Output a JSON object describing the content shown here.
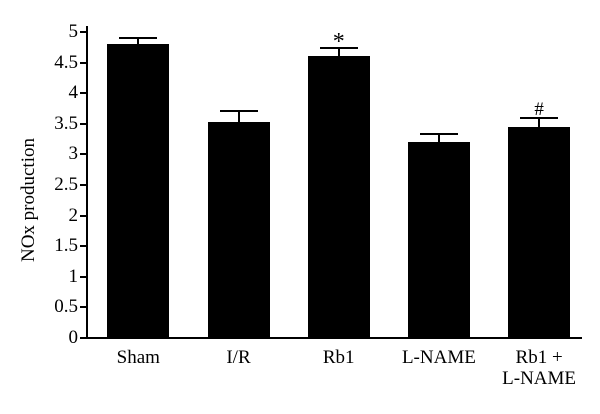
{
  "figure": {
    "background_color": "#ffffff",
    "foreground_color": "#000000"
  },
  "chart_data": {
    "type": "bar",
    "title": "",
    "xlabel": "",
    "ylabel": "NOx production",
    "ylim": [
      0,
      5
    ],
    "ytick_step": 0.5,
    "yticks": [
      0,
      0.5,
      1,
      1.5,
      2,
      2.5,
      3,
      3.5,
      4,
      4.5,
      5
    ],
    "ytick_labels": [
      "0",
      "0.5",
      "1",
      "1.5",
      "2",
      "2.5",
      "3",
      "3.5",
      "4",
      "4.5",
      "5"
    ],
    "grid": false,
    "legend": false,
    "bar_color": "#000000",
    "categories": [
      "Sham",
      "I/R",
      "Rb1",
      "L-NAME",
      "Rb1 +\nL-NAME"
    ],
    "values": [
      4.8,
      3.53,
      4.6,
      3.2,
      3.44
    ],
    "errors": [
      0.1,
      0.18,
      0.14,
      0.13,
      0.15
    ],
    "annotations": [
      "",
      "",
      "*",
      "",
      "#"
    ]
  }
}
